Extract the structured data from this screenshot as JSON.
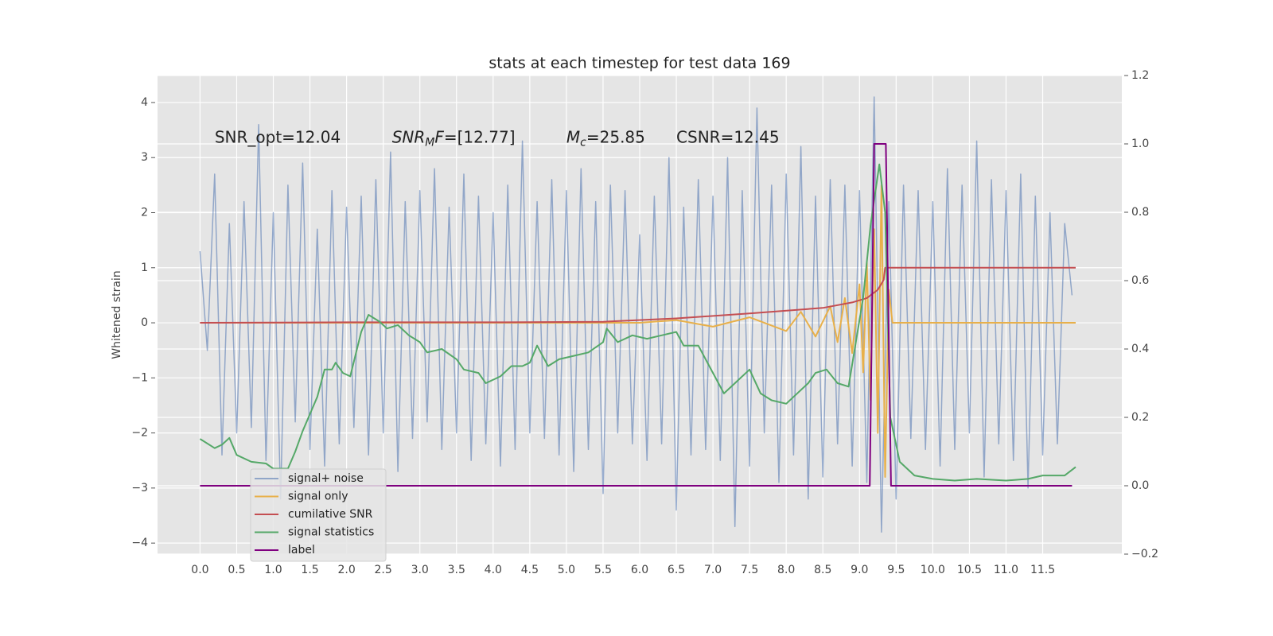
{
  "chart_data": {
    "type": "line",
    "title": "stats at each timestep for test data 169",
    "ylabel": "Whitened strain",
    "xlim": [
      -0.58,
      12.58
    ],
    "ylim": [
      -4.2,
      4.49
    ],
    "y2lim": [
      -0.2,
      1.2
    ],
    "xticks": [
      {
        "value": 0,
        "label": "0.0"
      },
      0.5,
      {
        "value": 1,
        "label": "1.0"
      },
      1.5,
      {
        "value": 2,
        "label": "2.0"
      },
      2.5,
      {
        "value": 3,
        "label": "3.0"
      },
      3.5,
      {
        "value": 4,
        "label": "4.0"
      },
      4.5,
      {
        "value": 5,
        "label": "5.0"
      },
      5.5,
      {
        "value": 6,
        "label": "6.0"
      },
      6.5,
      {
        "value": 7,
        "label": "7.0"
      },
      7.5,
      {
        "value": 8,
        "label": "8.0"
      },
      8.5,
      {
        "value": 9,
        "label": "9.0"
      },
      9.5,
      {
        "value": 10,
        "label": "10.0"
      },
      10.5,
      {
        "value": 11,
        "label": "11.0"
      },
      11.5
    ],
    "yticks": [
      {
        "value": -4,
        "label": "−4"
      },
      {
        "value": -3,
        "label": "−3"
      },
      {
        "value": -2,
        "label": "−2"
      },
      {
        "value": -1,
        "label": "−1"
      },
      0,
      1,
      2,
      3,
      4
    ],
    "y2ticks": [
      {
        "value": -0.2,
        "label": "−0.2"
      },
      {
        "value": 0,
        "label": "0.0"
      },
      0.2,
      0.4,
      0.6,
      0.8,
      {
        "value": 1,
        "label": "1.0"
      },
      1.2
    ],
    "grid": true,
    "legend": "lower left",
    "annotations": [
      {
        "x": 0.2,
        "y": 3.36,
        "parts": [
          {
            "text": "SNR_opt=12.04"
          }
        ]
      },
      {
        "x": 2.62,
        "y": 3.36,
        "parts": [
          {
            "text": "SNR",
            "italic": true
          },
          {
            "text": "M",
            "italic": true,
            "sub": true
          },
          {
            "text": "F",
            "italic": true
          },
          {
            "text": "=[12.77]"
          }
        ]
      },
      {
        "x": 5.0,
        "y": 3.36,
        "parts": [
          {
            "text": "M",
            "italic": true
          },
          {
            "text": "c",
            "italic": true,
            "sub": true
          },
          {
            "text": "=25.85"
          }
        ]
      },
      {
        "x": 6.5,
        "y": 3.36,
        "parts": [
          {
            "text": "CSNR=12.45"
          }
        ]
      }
    ],
    "series": [
      {
        "name": "signal+ noise",
        "color": "#4c72b0",
        "opacity": 0.55,
        "x": [
          0,
          0.1,
          0.2,
          0.3,
          0.4,
          0.5,
          0.6,
          0.7,
          0.8,
          0.9,
          1,
          1.1,
          1.2,
          1.3,
          1.4,
          1.5,
          1.6,
          1.7,
          1.8,
          1.9,
          2,
          2.1,
          2.2,
          2.3,
          2.4,
          2.5,
          2.6,
          2.7,
          2.8,
          2.9,
          3,
          3.1,
          3.2,
          3.3,
          3.4,
          3.5,
          3.6,
          3.7,
          3.8,
          3.9,
          4,
          4.1,
          4.2,
          4.3,
          4.4,
          4.5,
          4.6,
          4.7,
          4.8,
          4.9,
          5,
          5.1,
          5.2,
          5.3,
          5.4,
          5.5,
          5.6,
          5.7,
          5.8,
          5.9,
          6,
          6.1,
          6.2,
          6.3,
          6.4,
          6.5,
          6.6,
          6.7,
          6.8,
          6.9,
          7,
          7.1,
          7.2,
          7.3,
          7.4,
          7.5,
          7.6,
          7.7,
          7.8,
          7.9,
          8,
          8.1,
          8.2,
          8.3,
          8.4,
          8.5,
          8.6,
          8.7,
          8.8,
          8.9,
          9,
          9.1,
          9.2,
          9.3,
          9.4,
          9.5,
          9.6,
          9.7,
          9.8,
          9.9,
          10,
          10.1,
          10.2,
          10.3,
          10.4,
          10.5,
          10.6,
          10.7,
          10.8,
          10.9,
          11,
          11.1,
          11.2,
          11.3,
          11.4,
          11.5,
          11.6,
          11.7,
          11.8,
          11.9
        ],
        "values": [
          1.3,
          -0.5,
          2.7,
          -2.4,
          1.8,
          -2.0,
          2.2,
          -1.9,
          3.6,
          -2.5,
          2.0,
          -3.2,
          2.5,
          -1.8,
          2.9,
          -2.3,
          1.7,
          -2.6,
          2.4,
          -2.2,
          2.1,
          -1.9,
          2.3,
          -2.4,
          2.6,
          -2.0,
          3.1,
          -2.7,
          2.2,
          -2.1,
          2.4,
          -1.8,
          2.8,
          -2.3,
          2.1,
          -2.0,
          2.7,
          -2.5,
          2.3,
          -2.2,
          2.0,
          -2.6,
          2.5,
          -2.3,
          3.3,
          -2.0,
          2.2,
          -2.1,
          2.6,
          -2.4,
          2.4,
          -2.7,
          2.8,
          -2.3,
          2.2,
          -3.1,
          2.5,
          -2.0,
          2.4,
          -2.2,
          1.6,
          -2.5,
          2.3,
          -2.2,
          3.0,
          -3.4,
          2.1,
          -2.4,
          2.6,
          -2.3,
          2.3,
          -2.5,
          3.0,
          -3.7,
          2.4,
          -2.6,
          3.9,
          -2.0,
          2.5,
          -2.9,
          2.7,
          -2.4,
          3.2,
          -3.2,
          2.3,
          -2.8,
          2.6,
          -2.2,
          2.5,
          -2.6,
          2.4,
          -2.9,
          4.1,
          -3.8,
          2.2,
          -3.2,
          2.5,
          -2.1,
          2.4,
          -2.3,
          2.2,
          -2.6,
          2.8,
          -2.3,
          2.5,
          -2.0,
          3.3,
          -2.8,
          2.6,
          -2.2,
          2.4,
          -2.5,
          2.7,
          -3.0,
          2.3,
          -2.4,
          2.0,
          -2.2,
          1.8,
          0.5
        ]
      },
      {
        "name": "signal only",
        "color": "#e8b04a",
        "x": [
          0,
          6.0,
          6.5,
          7.0,
          7.5,
          8.0,
          8.2,
          8.4,
          8.6,
          8.7,
          8.8,
          8.9,
          9.0,
          9.05,
          9.1,
          9.15,
          9.2,
          9.25,
          9.3,
          9.35,
          9.4,
          9.45,
          11.95
        ],
        "values": [
          0,
          0,
          0.05,
          -0.07,
          0.1,
          -0.15,
          0.2,
          -0.25,
          0.3,
          -0.35,
          0.45,
          -0.55,
          0.7,
          -0.9,
          1.1,
          -1.4,
          1.7,
          -2.0,
          2.5,
          -2.8,
          0.6,
          0,
          0
        ]
      },
      {
        "name": "cumilative SNR",
        "color": "#c44e52",
        "x": [
          0,
          2,
          4,
          5.5,
          6.5,
          7.5,
          8.5,
          8.9,
          9.1,
          9.25,
          9.33,
          9.35,
          11.95
        ],
        "values": [
          0,
          0.01,
          0.01,
          0.02,
          0.08,
          0.17,
          0.27,
          0.37,
          0.45,
          0.6,
          0.78,
          1.0,
          1.0
        ]
      },
      {
        "name": "signal statistics",
        "color": "#55a868",
        "axis": "y2",
        "x": [
          0,
          0.2,
          0.3,
          0.4,
          0.5,
          0.7,
          0.9,
          1.0,
          1.2,
          1.3,
          1.4,
          1.6,
          1.7,
          1.8,
          1.85,
          1.95,
          2.05,
          2.2,
          2.3,
          2.45,
          2.55,
          2.7,
          2.85,
          3.0,
          3.1,
          3.3,
          3.5,
          3.6,
          3.8,
          3.9,
          4.1,
          4.25,
          4.4,
          4.5,
          4.6,
          4.75,
          4.9,
          5.1,
          5.3,
          5.5,
          5.55,
          5.7,
          5.9,
          6.1,
          6.3,
          6.5,
          6.6,
          6.8,
          7.0,
          7.15,
          7.3,
          7.5,
          7.65,
          7.8,
          8.0,
          8.1,
          8.3,
          8.4,
          8.55,
          8.7,
          8.85,
          8.95,
          9.05,
          9.15,
          9.27,
          9.35,
          9.42,
          9.55,
          9.75,
          10.0,
          10.3,
          10.6,
          11.0,
          11.3,
          11.5,
          11.8,
          11.95
        ],
        "values": [
          0.137,
          0.11,
          0.12,
          0.14,
          0.09,
          0.07,
          0.065,
          0.05,
          0.05,
          0.1,
          0.16,
          0.26,
          0.34,
          0.34,
          0.36,
          0.33,
          0.32,
          0.45,
          0.5,
          0.48,
          0.46,
          0.47,
          0.44,
          0.42,
          0.39,
          0.4,
          0.37,
          0.34,
          0.33,
          0.3,
          0.32,
          0.35,
          0.35,
          0.36,
          0.41,
          0.35,
          0.37,
          0.38,
          0.39,
          0.42,
          0.46,
          0.42,
          0.44,
          0.43,
          0.44,
          0.45,
          0.41,
          0.41,
          0.33,
          0.27,
          0.3,
          0.34,
          0.27,
          0.25,
          0.24,
          0.26,
          0.3,
          0.33,
          0.34,
          0.3,
          0.29,
          0.42,
          0.55,
          0.76,
          0.94,
          0.8,
          0.2,
          0.07,
          0.03,
          0.02,
          0.015,
          0.02,
          0.015,
          0.02,
          0.03,
          0.03,
          0.055
        ]
      },
      {
        "name": "label",
        "color": "#800080",
        "axis": "y2",
        "x": [
          0,
          9.14,
          9.2,
          9.36,
          9.43,
          11.9
        ],
        "values": [
          0,
          0,
          1,
          1,
          0,
          0
        ]
      }
    ]
  }
}
